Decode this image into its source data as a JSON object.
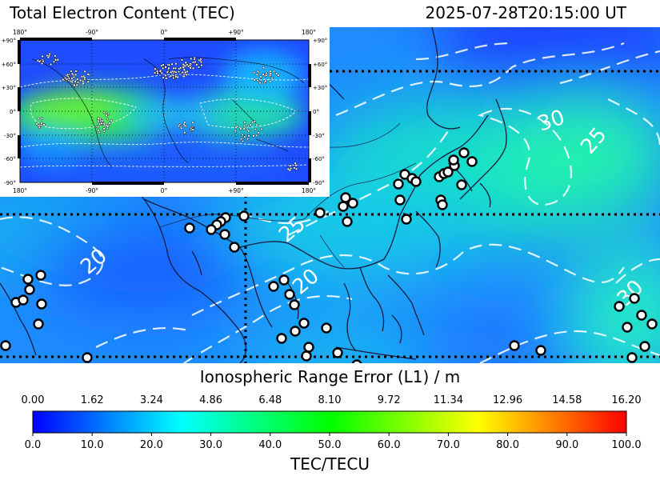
{
  "header": {
    "title": "Total Electron Content (TEC)",
    "timestamp": "2025-07-28T20:15:00 UT"
  },
  "inset": {
    "lon_labels": [
      "180°",
      "-90°",
      "0°",
      "+90°",
      "180°"
    ],
    "lat_labels": [
      "+90°",
      "+60°",
      "+30°",
      "0°",
      "-30°",
      "-60°",
      "-90°"
    ]
  },
  "main_map": {
    "contour_labels": [
      "30",
      "25",
      "25",
      "20",
      "20",
      "30"
    ],
    "station_marker": "white-circle-black-outline"
  },
  "colorbar": {
    "range_label": "Ionospheric Range Error (L1) / m",
    "range_ticks": [
      "0.00",
      "1.62",
      "3.24",
      "4.86",
      "6.48",
      "8.10",
      "9.72",
      "11.34",
      "12.96",
      "14.58",
      "16.20"
    ],
    "tec_ticks": [
      "0.0",
      "10.0",
      "20.0",
      "30.0",
      "40.0",
      "50.0",
      "60.0",
      "70.0",
      "80.0",
      "90.0",
      "100.0"
    ],
    "unit_label": "TEC/TECU",
    "min": 0,
    "max": 100,
    "colors": [
      "#0000ff",
      "#00ffff",
      "#00ff00",
      "#ffff00",
      "#ff0000"
    ]
  }
}
